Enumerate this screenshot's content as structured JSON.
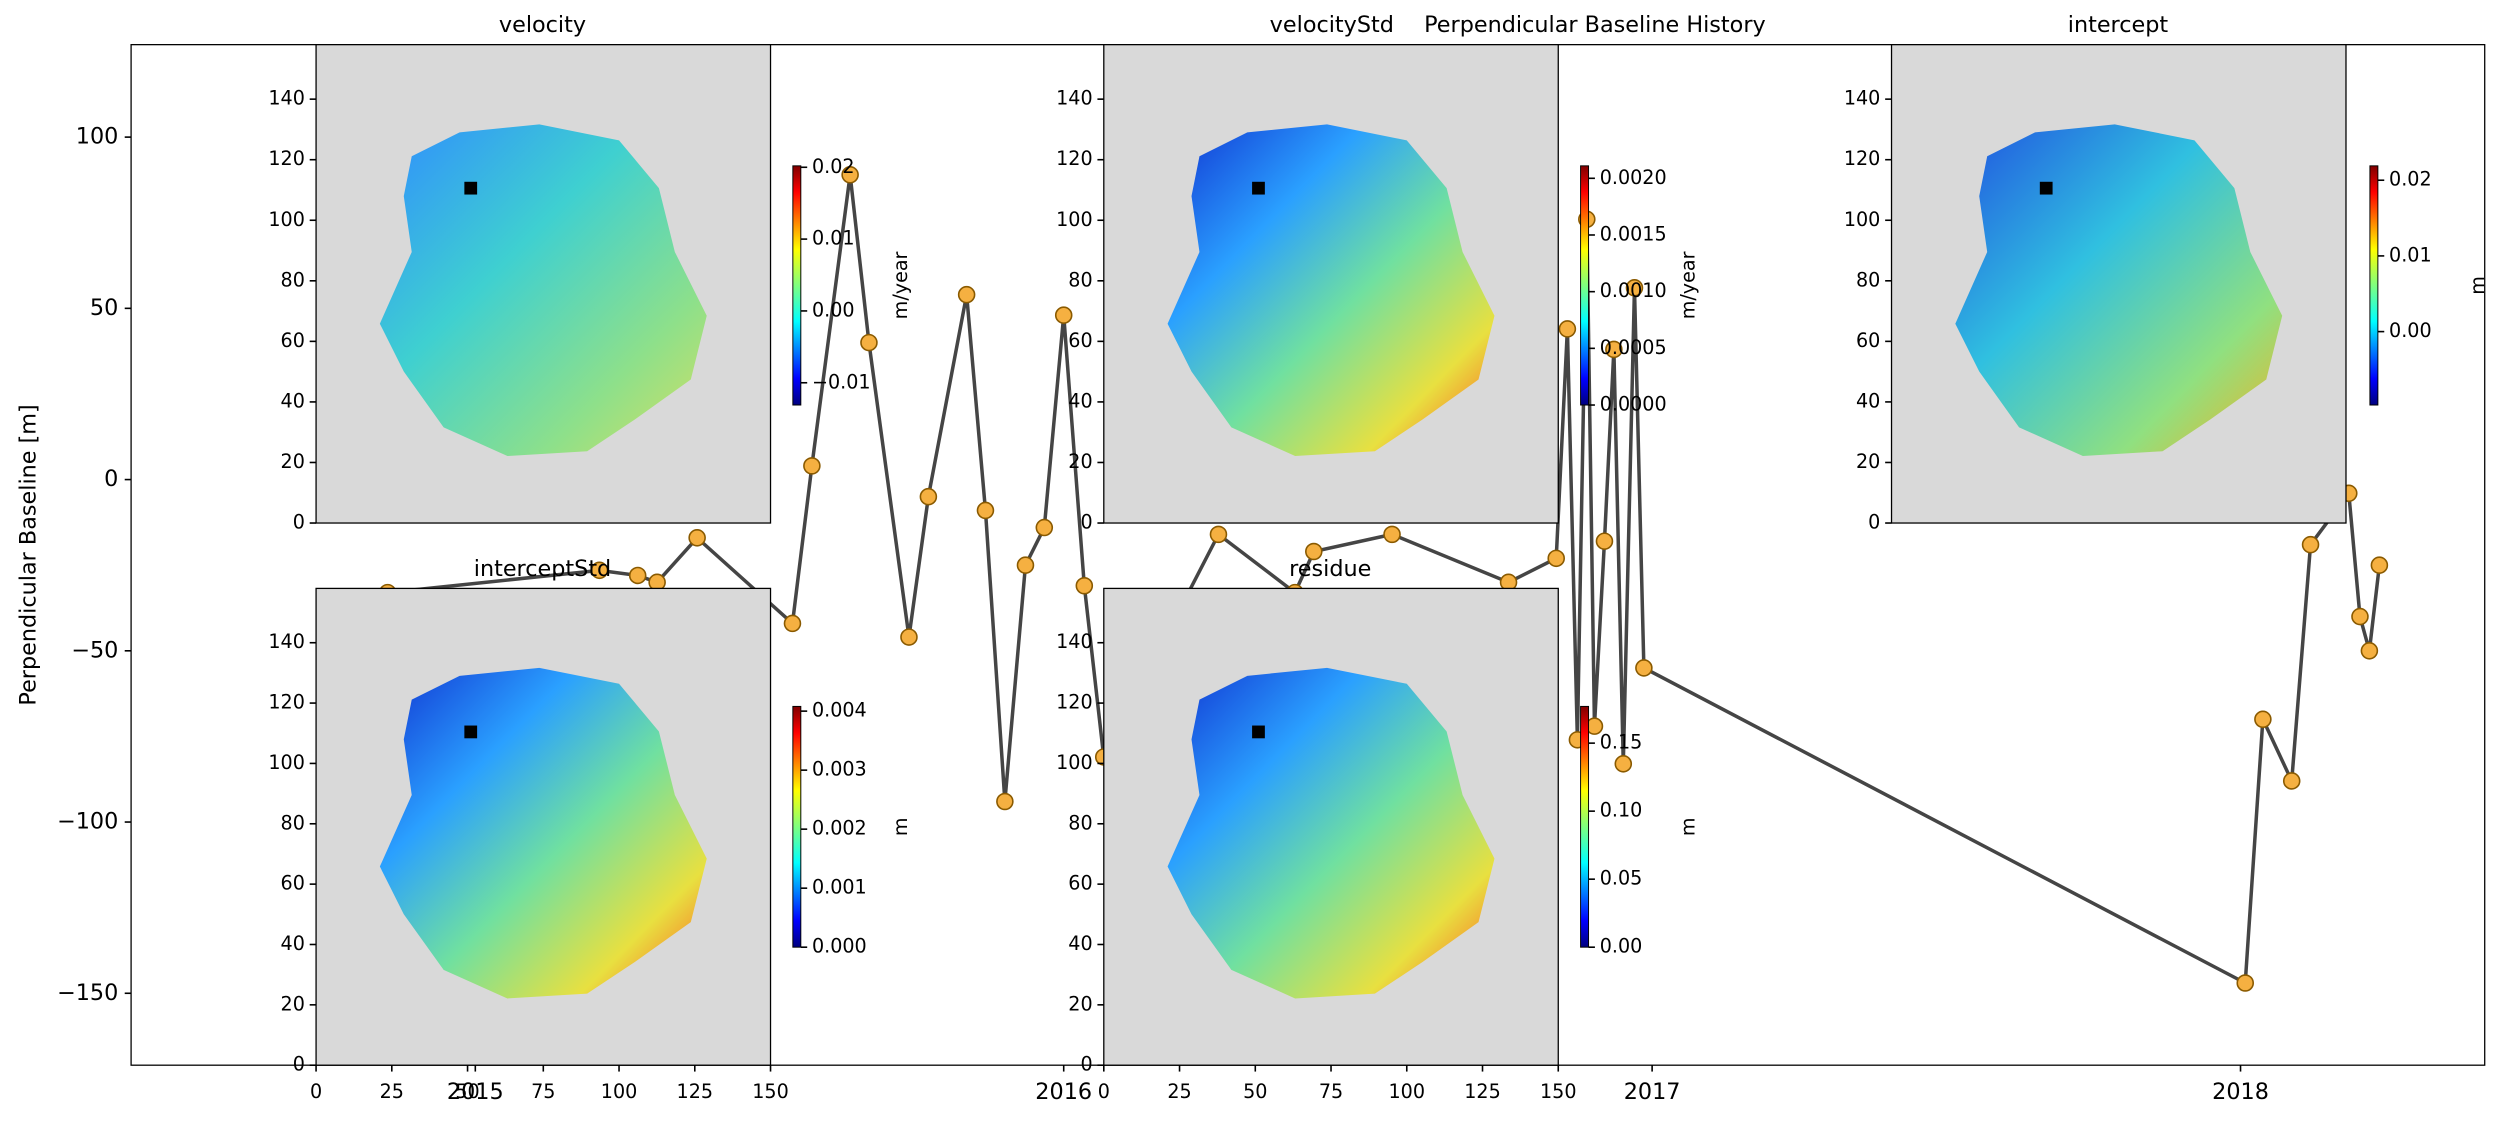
{
  "chart_data": [
    {
      "type": "line",
      "title": "Perpendicular Baseline History",
      "ylabel": "Perpendicular Baseline [m]",
      "x": [
        2014.851,
        2015.211,
        2015.276,
        2015.309,
        2015.377,
        2015.539,
        2015.572,
        2015.637,
        2015.669,
        2015.737,
        2015.77,
        2015.835,
        2015.867,
        2015.9,
        2015.935,
        2015.967,
        2016.0,
        2016.035,
        2016.068,
        2016.263,
        2016.393,
        2016.425,
        2016.558,
        2016.756,
        2016.837,
        2016.856,
        2016.873,
        2016.889,
        2016.902,
        2016.919,
        2016.935,
        2016.951,
        2016.97,
        2016.986,
        2018.008,
        2018.038,
        2018.087,
        2018.119,
        2018.184,
        2018.203,
        2018.219,
        2018.236
      ],
      "values": [
        -33,
        -26.5,
        -28,
        -30,
        -17,
        -42,
        4,
        89,
        40,
        -46,
        -5,
        54,
        -9,
        -94,
        -25,
        -14,
        48,
        -31,
        -81,
        -16,
        -33,
        -21,
        -16,
        -30,
        -23,
        44,
        -76,
        76,
        -72,
        -18,
        38,
        -83,
        56,
        -55,
        -147,
        -70,
        -88,
        -19,
        -4,
        -40,
        -50,
        -25
      ],
      "xlim": [
        2014.415,
        2018.415
      ],
      "xticks": [
        2015,
        2016,
        2017,
        2018
      ],
      "ylim": [
        -171,
        127
      ],
      "yticks": [
        {
          "value": -150,
          "label": "−150"
        },
        {
          "value": -100,
          "label": "−100"
        },
        {
          "value": -50,
          "label": "−50"
        },
        0,
        50,
        100
      ],
      "color": "#454545",
      "marker_color": "#f5b041"
    },
    {
      "type": "image",
      "title": "velocity",
      "xlim": [
        0,
        150
      ],
      "ylim": [
        0,
        158
      ],
      "yticks": [
        0,
        20,
        40,
        60,
        80,
        100,
        120,
        140
      ],
      "colorbar": {
        "label": "m/year",
        "lim": [
          -0.0131,
          0.0202
        ],
        "ticks": [
          {
            "value": -0.01,
            "label": "−0.01"
          },
          {
            "value": 0,
            "label": "0.00"
          },
          0.01,
          0.02
        ]
      }
    },
    {
      "type": "image",
      "title": "velocityStd",
      "xlim": [
        0,
        150
      ],
      "ylim": [
        0,
        158
      ],
      "yticks": [
        0,
        20,
        40,
        60,
        80,
        100,
        120,
        140
      ],
      "colorbar": {
        "label": "m/year",
        "lim": [
          0,
          0.00211
        ],
        "ticks": [
          {
            "value": 0,
            "label": "0.0000"
          },
          0.0005,
          {
            "value": 0.001,
            "label": "0.0010"
          },
          0.0015,
          {
            "value": 0.002,
            "label": "0.0020"
          }
        ]
      }
    },
    {
      "type": "image",
      "title": "intercept",
      "xlim": [
        0,
        150
      ],
      "ylim": [
        0,
        158
      ],
      "yticks": [
        0,
        20,
        40,
        60,
        80,
        100,
        120,
        140
      ],
      "colorbar": {
        "label": "m",
        "lim": [
          -0.0097,
          0.0219
        ],
        "ticks": [
          {
            "value": 0,
            "label": "0.00"
          },
          0.01,
          0.02
        ]
      }
    },
    {
      "type": "image",
      "title": "interceptStd",
      "xlim": [
        0,
        150
      ],
      "ylim": [
        0,
        158
      ],
      "xticks": [
        0,
        25,
        50,
        75,
        100,
        125,
        150
      ],
      "yticks": [
        0,
        20,
        40,
        60,
        80,
        100,
        120,
        140
      ],
      "colorbar": {
        "label": "m",
        "lim": [
          0,
          0.00408
        ],
        "ticks": [
          {
            "value": 0,
            "label": "0.000"
          },
          0.001,
          0.002,
          0.003,
          0.004
        ]
      }
    },
    {
      "type": "image",
      "title": "residue",
      "xlim": [
        0,
        150
      ],
      "ylim": [
        0,
        158
      ],
      "xticks": [
        0,
        25,
        50,
        75,
        100,
        125,
        150
      ],
      "yticks": [
        0,
        20,
        40,
        60,
        80,
        100,
        120,
        140
      ],
      "colorbar": {
        "label": "m",
        "lim": [
          0,
          0.177
        ],
        "ticks": [
          {
            "value": 0,
            "label": "0.00"
          },
          0.05,
          {
            "value": 0.1,
            "label": "0.10"
          },
          0.15
        ]
      }
    }
  ]
}
